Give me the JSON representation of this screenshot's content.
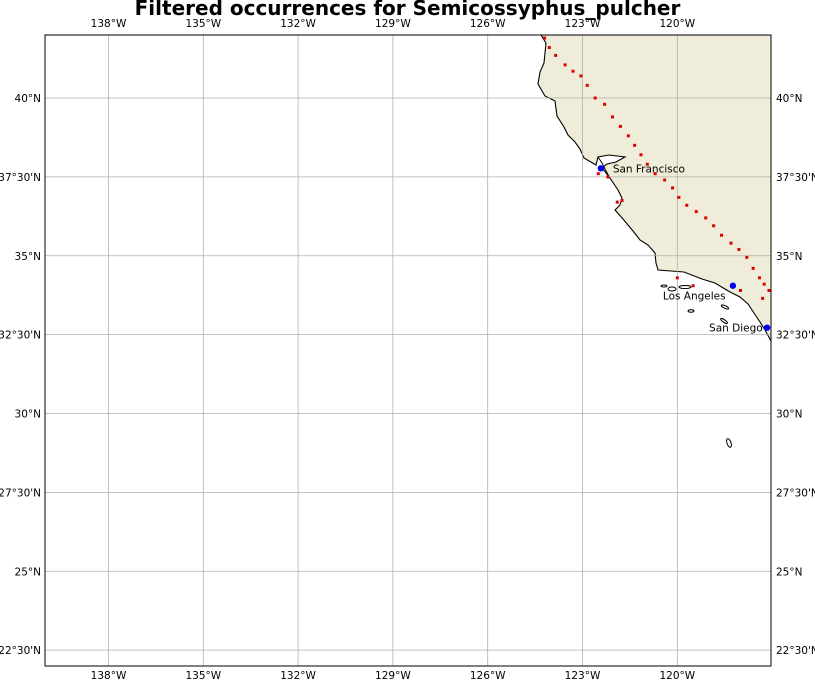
{
  "title": "Filtered occurrences for Semicossyphus_pulcher",
  "x_ticks": [
    "138°W",
    "135°W",
    "132°W",
    "129°W",
    "126°W",
    "123°W",
    "120°W"
  ],
  "y_ticks": [
    "40°N",
    "37°30'N",
    "35°N",
    "32°30'N",
    "30°N",
    "27°30'N",
    "25°N",
    "22°30'N"
  ],
  "cities": [
    {
      "name": "San Francisco",
      "lon": -122.42,
      "lat": 37.77
    },
    {
      "name": "Los Angeles",
      "lon": -118.24,
      "lat": 34.05
    },
    {
      "name": "San Diego",
      "lon": -117.16,
      "lat": 32.72
    }
  ],
  "colors": {
    "land": "#efedd9",
    "occurrence": "#e00000",
    "city": "#0000ee",
    "grid": "#b0b0b0"
  },
  "chart_data": {
    "type": "scatter",
    "title": "Filtered occurrences for Semicossyphus_pulcher",
    "xlim": [
      -140,
      -117
    ],
    "ylim": [
      22,
      42
    ],
    "grid": true,
    "series": [
      {
        "points": [
          [
            -124.2,
            41.9
          ],
          [
            -124.05,
            41.6
          ],
          [
            -123.85,
            41.35
          ],
          [
            -123.55,
            41.05
          ],
          [
            -123.3,
            40.85
          ],
          [
            -123.05,
            40.7
          ],
          [
            -122.85,
            40.4
          ],
          [
            -122.6,
            40.0
          ],
          [
            -122.3,
            39.8
          ],
          [
            -122.05,
            39.4
          ],
          [
            -121.8,
            39.1
          ],
          [
            -121.55,
            38.8
          ],
          [
            -121.35,
            38.5
          ],
          [
            -121.15,
            38.2
          ],
          [
            -120.95,
            37.9
          ],
          [
            -120.7,
            37.6
          ],
          [
            -120.4,
            37.4
          ],
          [
            -120.15,
            37.15
          ],
          [
            -119.95,
            36.85
          ],
          [
            -119.7,
            36.6
          ],
          [
            -119.4,
            36.4
          ],
          [
            -119.1,
            36.2
          ],
          [
            -118.85,
            35.95
          ],
          [
            -118.6,
            35.65
          ],
          [
            -118.3,
            35.4
          ],
          [
            -118.05,
            35.2
          ],
          [
            -117.8,
            34.95
          ],
          [
            -117.6,
            34.6
          ],
          [
            -117.4,
            34.3
          ],
          [
            -117.25,
            34.1
          ],
          [
            -117.1,
            33.9
          ],
          [
            -116.85,
            33.75
          ],
          [
            -116.6,
            33.5
          ],
          [
            -116.4,
            33.2
          ],
          [
            -116.25,
            32.95
          ],
          [
            -121.9,
            36.7
          ],
          [
            -121.75,
            36.75
          ],
          [
            -122.5,
            37.6
          ],
          [
            -122.2,
            37.5
          ],
          [
            -119.5,
            34.05
          ],
          [
            -117.0,
            34.3
          ],
          [
            -116.55,
            33.6
          ],
          [
            -120.0,
            34.3
          ],
          [
            -118.0,
            33.9
          ],
          [
            -117.3,
            33.65
          ]
        ]
      }
    ]
  }
}
